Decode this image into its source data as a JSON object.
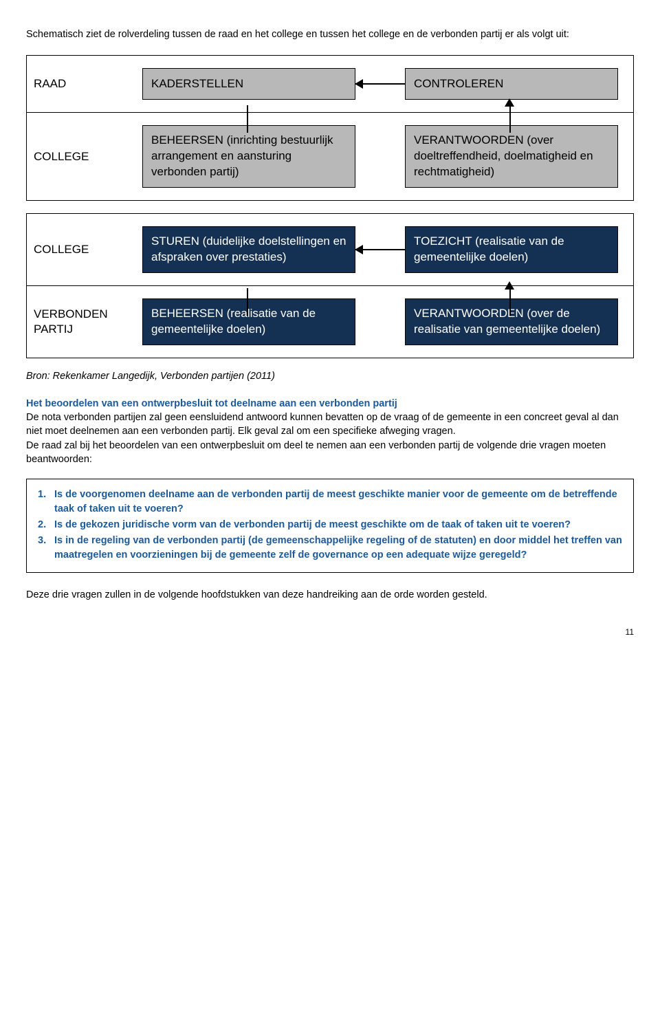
{
  "intro": "Schematisch ziet de rolverdeling tussen de raad en het college en tussen het college en de verbonden partij er als volgt uit:",
  "diagrams": {
    "top": {
      "rows": [
        {
          "label": "RAAD",
          "left": "KADERSTELLEN",
          "right": "CONTROLEREN"
        },
        {
          "label": "COLLEGE",
          "left": "BEHEERSEN (inrichting bestuurlijk arrangement en aansturing verbonden partij)",
          "right": "VERANTWOORDEN (over doeltreffendheid, doelmatigheid en rechtmatigheid)"
        }
      ],
      "box_bg": "#b8b8b8",
      "box_fg": "#000000"
    },
    "bottom": {
      "rows": [
        {
          "label": "COLLEGE",
          "left": "STUREN (duidelijke doelstellingen en afspraken over prestaties)",
          "right": "TOEZICHT (realisatie van de gemeentelijke doelen)"
        },
        {
          "label": "VERBONDEN PARTIJ",
          "left": "BEHEERSEN (realisatie van de gemeentelijke doelen)",
          "right": "VERANTWOORDEN (over de realisatie van gemeentelijke doelen)"
        }
      ],
      "box_bg": "#143052",
      "box_fg": "#ffffff"
    }
  },
  "source": "Bron: Rekenkamer Langedijk, Verbonden partijen (2011)",
  "heading": "Het beoordelen van een ontwerpbesluit tot deelname aan een verbonden partij",
  "body": "De nota verbonden partijen zal geen eensluidend antwoord kunnen bevatten op de vraag of de gemeente in een concreet geval al dan niet moet deelnemen aan een verbonden partij. Elk geval zal om een specifieke afweging vragen.\nDe raad zal bij het beoordelen van een ontwerpbesluit om deel te nemen aan een verbonden partij de volgende drie vragen moeten beantwoorden:",
  "list": [
    "Is de voorgenomen deelname aan de verbonden partij de meest geschikte manier voor de gemeente om de betreffende taak of taken uit te voeren?",
    "Is de gekozen juridische vorm van de verbonden partij de meest geschikte om de taak of taken uit te voeren?",
    "Is in de regeling van de verbonden partij (de gemeenschappelijke regeling of de statuten) en door middel het treffen van maatregelen en voorzieningen bij de gemeente zelf de governance op een adequate wijze geregeld?"
  ],
  "closing": "Deze drie vragen zullen in de volgende hoofdstukken van deze handreiking aan de orde worden gesteld.",
  "pagenum": "11",
  "colors": {
    "blue_text": "#1d5a9a"
  }
}
